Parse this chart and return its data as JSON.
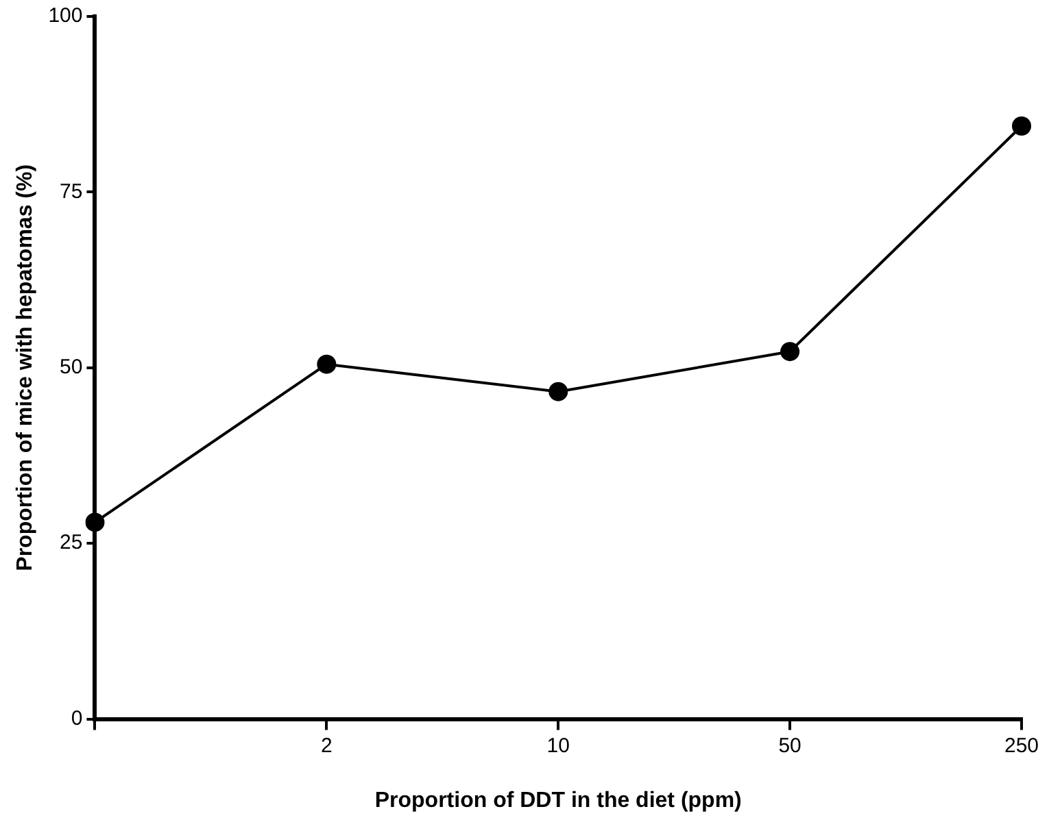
{
  "chart_data": {
    "type": "line",
    "xlabel": "Proportion of DDT in the diet (ppm)",
    "ylabel": "Proportion of mice with hepatomas (%)",
    "categories": [
      null,
      "2",
      "10",
      "50",
      "250"
    ],
    "series": [
      {
        "color": "#000000",
        "values": [
          28,
          50.5,
          46.6,
          52.3,
          84.4
        ]
      }
    ],
    "ylim": [
      0,
      100
    ],
    "yticks": [
      0,
      25,
      50,
      75,
      100
    ],
    "grid": false,
    "legend": false,
    "marker": "circle",
    "line_style": "solid"
  }
}
